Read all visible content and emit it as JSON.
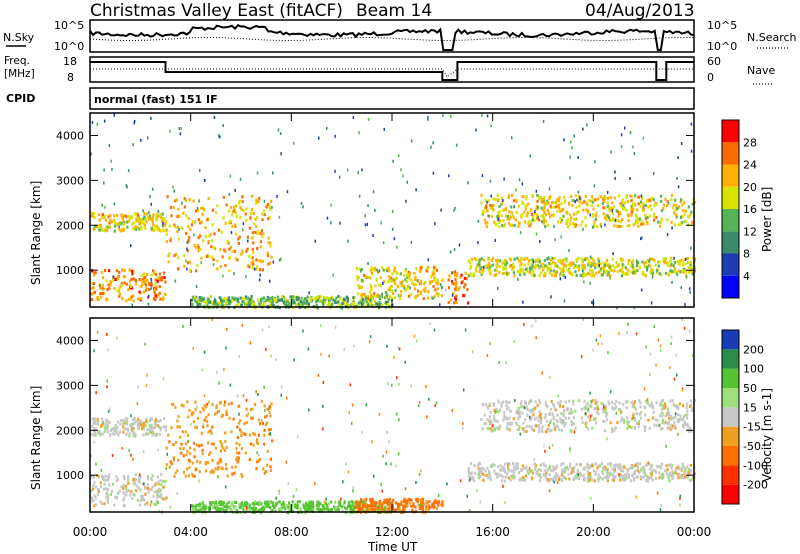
{
  "header": {
    "title": "Christmas Valley East (fitACF)",
    "beam": "Beam 14",
    "date": "04/Aug/2013"
  },
  "top_panels": {
    "nsky_label": "N.Sky",
    "nsearch_label": "N.Search",
    "freq_label_1": "Freq.",
    "freq_label_2": "[MHz]",
    "nave_label": "Nave",
    "cpid_label": "CPID",
    "cpid_value": "normal (fast) 151 IF",
    "noise_left_ticks": [
      "10^5",
      "10^0"
    ],
    "noise_right_ticks": [
      "10^5",
      "10^0"
    ],
    "freq_left_ticks": [
      "18",
      "8"
    ],
    "nave_right_ticks": [
      "60",
      "0"
    ]
  },
  "chart_data": [
    {
      "type": "heatmap",
      "name": "power-panel",
      "ylabel": "Slant Range [km]",
      "xlabel": "Time UT",
      "x_ticks": [
        "00:00",
        "04:00",
        "08:00",
        "12:00",
        "16:00",
        "20:00",
        "00:00"
      ],
      "y_ticks": [
        "1000",
        "2000",
        "3000",
        "4000"
      ],
      "ylim": [
        180,
        4500
      ],
      "colorbar_label": "Power [dB]",
      "colorbar_ticks": [
        "4",
        "8",
        "12",
        "16",
        "20",
        "24",
        "28"
      ],
      "colorbar_colors": [
        "#0000ff",
        "#1e3cb4",
        "#3a8c6a",
        "#55b455",
        "#d8e400",
        "#ffb000",
        "#ff6a00",
        "#ff0000"
      ],
      "bands": [
        {
          "t0": 0.0,
          "t1": 3.0,
          "r0": 1900,
          "r1": 2300,
          "power": 20
        },
        {
          "t0": 0.0,
          "t1": 3.0,
          "r0": 350,
          "r1": 1050,
          "power": 24
        },
        {
          "t0": 3.0,
          "t1": 7.2,
          "r0": 1000,
          "r1": 2700,
          "power": 22
        },
        {
          "t0": 4.0,
          "t1": 12.0,
          "r0": 200,
          "r1": 450,
          "power": 14
        },
        {
          "t0": 10.5,
          "t1": 14.0,
          "r0": 400,
          "r1": 1100,
          "power": 20
        },
        {
          "t0": 14.2,
          "t1": 15.0,
          "r0": 300,
          "r1": 1000,
          "power": 26
        },
        {
          "t0": 15.0,
          "t1": 24.0,
          "r0": 900,
          "r1": 1300,
          "power": 18
        },
        {
          "t0": 15.5,
          "t1": 24.0,
          "r0": 2000,
          "r1": 2700,
          "power": 20
        }
      ]
    },
    {
      "type": "heatmap",
      "name": "velocity-panel",
      "ylabel": "Slant Range [km]",
      "xlabel": "Time UT",
      "x_ticks": [
        "00:00",
        "04:00",
        "08:00",
        "12:00",
        "16:00",
        "20:00",
        "00:00"
      ],
      "y_ticks": [
        "1000",
        "2000",
        "3000",
        "4000"
      ],
      "ylim": [
        180,
        4500
      ],
      "colorbar_label": "Velocity [m s-1]",
      "colorbar_ticks": [
        "200",
        "100",
        "50",
        "15",
        "-15",
        "-50",
        "-100",
        "-200"
      ],
      "colorbar_colors": [
        "#1a3cb4",
        "#2a8c4a",
        "#55c433",
        "#9be07a",
        "#c8c8c8",
        "#f0a020",
        "#ff7000",
        "#ff3000",
        "#ff0000"
      ],
      "bands": [
        {
          "t0": 0.0,
          "t1": 3.0,
          "r0": 1900,
          "r1": 2300,
          "velocity": 0
        },
        {
          "t0": 0.0,
          "t1": 3.0,
          "r0": 350,
          "r1": 1050,
          "velocity": 0
        },
        {
          "t0": 3.0,
          "t1": 7.2,
          "r0": 1000,
          "r1": 2700,
          "velocity": -40
        },
        {
          "t0": 4.0,
          "t1": 12.0,
          "r0": 200,
          "r1": 450,
          "velocity": 60
        },
        {
          "t0": 10.5,
          "t1": 14.0,
          "r0": 200,
          "r1": 500,
          "velocity": -60
        },
        {
          "t0": 15.0,
          "t1": 24.0,
          "r0": 900,
          "r1": 1300,
          "velocity": 0
        },
        {
          "t0": 15.5,
          "t1": 24.0,
          "r0": 2000,
          "r1": 2700,
          "velocity": 0
        }
      ]
    }
  ]
}
